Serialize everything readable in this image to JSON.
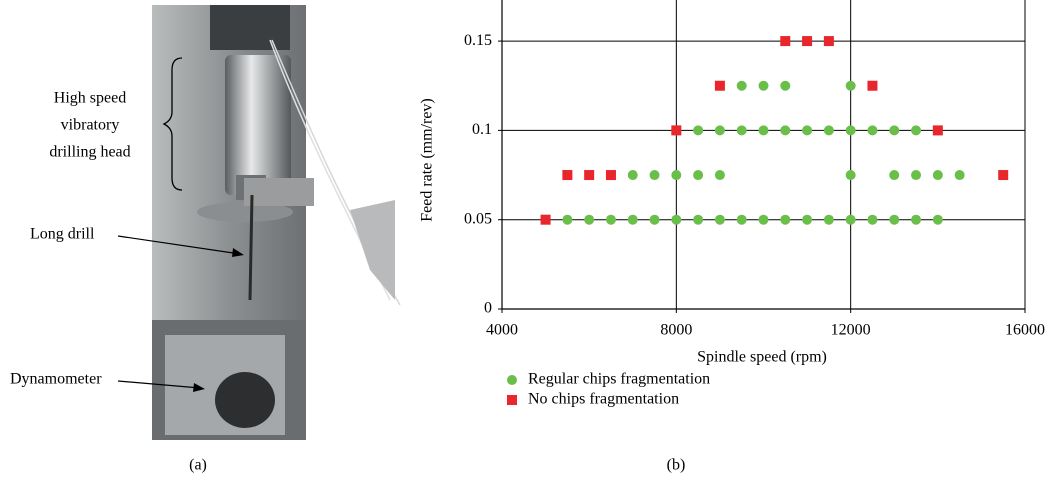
{
  "photo": {
    "head_label": [
      "High speed",
      "vibratory",
      "drilling head"
    ],
    "drill_label": "Long drill",
    "dynamometer_label": "Dynamometer",
    "caption": "(a)"
  },
  "chart_data": {
    "type": "scatter",
    "caption": "(b)",
    "x_label": "Spindle speed (rpm)",
    "y_label": "Feed rate (mm/rev)",
    "xlim": [
      4000,
      16000
    ],
    "ylim": [
      0,
      0.173
    ],
    "xticks": [
      4000,
      8000,
      12000,
      16000
    ],
    "yticks": [
      0,
      0.05,
      0.1,
      0.15
    ],
    "grid": true,
    "series": [
      {
        "name": "Regular chips fragmentation",
        "color": "#6abf4b",
        "marker": "circle",
        "x": [
          5500,
          6000,
          6500,
          7000,
          7500,
          8000,
          8500,
          9000,
          9500,
          10000,
          10500,
          11000,
          11500,
          12000,
          12500,
          13000,
          13500,
          14000,
          7000,
          7500,
          8000,
          8500,
          9000,
          12000,
          13000,
          13500,
          14000,
          14500,
          8500,
          9000,
          9500,
          10000,
          10500,
          11000,
          11500,
          12000,
          12500,
          13000,
          13500,
          9500,
          10000,
          10500,
          12000
        ],
        "values": [
          0.05,
          0.05,
          0.05,
          0.05,
          0.05,
          0.05,
          0.05,
          0.05,
          0.05,
          0.05,
          0.05,
          0.05,
          0.05,
          0.05,
          0.05,
          0.05,
          0.05,
          0.05,
          0.075,
          0.075,
          0.075,
          0.075,
          0.075,
          0.075,
          0.075,
          0.075,
          0.075,
          0.075,
          0.1,
          0.1,
          0.1,
          0.1,
          0.1,
          0.1,
          0.1,
          0.1,
          0.1,
          0.1,
          0.1,
          0.125,
          0.125,
          0.125,
          0.125
        ]
      },
      {
        "name": "No chips fragmentation",
        "color": "#e8262b",
        "marker": "square",
        "x": [
          5000,
          5500,
          6000,
          6500,
          15500,
          8000,
          14000,
          9000,
          12500,
          10500,
          11000,
          11500
        ],
        "values": [
          0.05,
          0.075,
          0.075,
          0.075,
          0.075,
          0.1,
          0.1,
          0.125,
          0.125,
          0.15,
          0.15,
          0.15
        ]
      }
    ]
  }
}
